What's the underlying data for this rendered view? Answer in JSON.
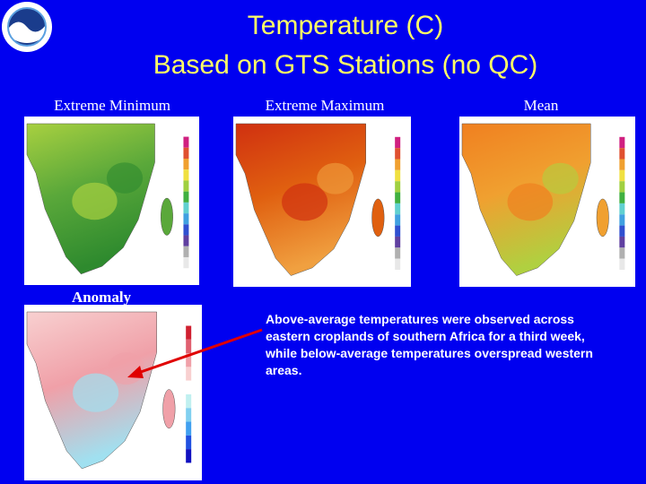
{
  "header": {
    "title": [
      "Temperature (C)",
      "Based on GTS Stations (no QC)"
    ]
  },
  "panels": [
    {
      "label": "Extreme Minimum"
    },
    {
      "label": "Extreme Maximum"
    },
    {
      "label": "Mean"
    },
    {
      "label": "Anomaly"
    }
  ],
  "description": "Above-average temperatures were observed across eastern croplands of southern Africa for a third week, while below-average temperatures overspread western areas."
}
